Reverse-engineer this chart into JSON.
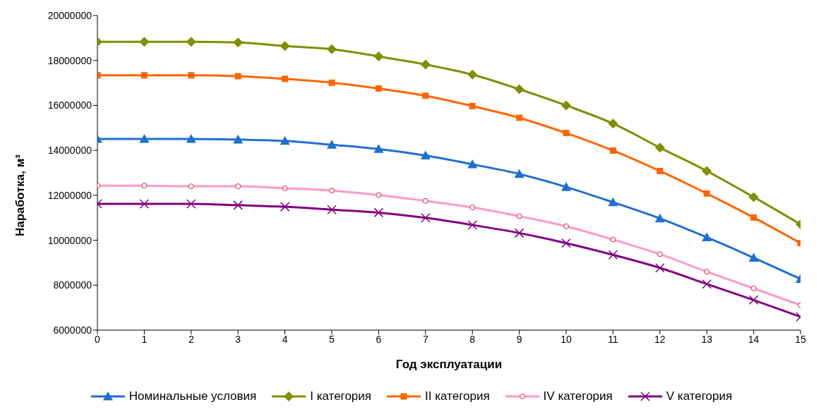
{
  "chart_data": {
    "type": "line",
    "xlabel": "Год эксплуатации",
    "ylabel": "Наработка, м³",
    "x": [
      0,
      1,
      2,
      3,
      4,
      5,
      6,
      7,
      8,
      9,
      10,
      11,
      12,
      13,
      14,
      15
    ],
    "xlim": [
      0,
      15
    ],
    "xticks": [
      0,
      1,
      2,
      3,
      4,
      5,
      6,
      7,
      8,
      9,
      10,
      11,
      12,
      13,
      14,
      15
    ],
    "ylim": [
      6000000,
      20000000
    ],
    "yticks": [
      6000000,
      8000000,
      10000000,
      12000000,
      14000000,
      16000000,
      18000000,
      20000000
    ],
    "grid": false,
    "legend": "bottom",
    "line_style": "solid",
    "series": [
      {
        "name": "Номинальные условия",
        "color": "#1f6fd1",
        "marker": "triangle",
        "values": [
          14510000,
          14510000,
          14510000,
          14480000,
          14420000,
          14250000,
          14060000,
          13770000,
          13380000,
          12950000,
          12370000,
          11690000,
          10970000,
          10130000,
          9220000,
          8280000
        ]
      },
      {
        "name": "I категория",
        "color": "#7f8f00",
        "marker": "diamond",
        "values": [
          18830000,
          18830000,
          18830000,
          18800000,
          18640000,
          18500000,
          18180000,
          17820000,
          17370000,
          16720000,
          16000000,
          15190000,
          14120000,
          13080000,
          11920000,
          10710000
        ]
      },
      {
        "name": "II категория",
        "color": "#ff6600",
        "marker": "square",
        "values": [
          17340000,
          17340000,
          17340000,
          17300000,
          17180000,
          17010000,
          16750000,
          16430000,
          15970000,
          15450000,
          14770000,
          13990000,
          13080000,
          12080000,
          11010000,
          9870000
        ]
      },
      {
        "name": "IV категория",
        "color": "#ff99cc",
        "marker": "circle",
        "values": [
          12430000,
          12430000,
          12400000,
          12400000,
          12310000,
          12210000,
          12010000,
          11750000,
          11460000,
          11070000,
          10620000,
          10030000,
          9380000,
          8600000,
          7860000,
          7110000
        ]
      },
      {
        "name": "V категория",
        "color": "#800080",
        "marker": "cross",
        "values": [
          11620000,
          11620000,
          11620000,
          11560000,
          11490000,
          11360000,
          11230000,
          11000000,
          10680000,
          10320000,
          9870000,
          9350000,
          8770000,
          8050000,
          7340000,
          6590000
        ]
      }
    ]
  }
}
